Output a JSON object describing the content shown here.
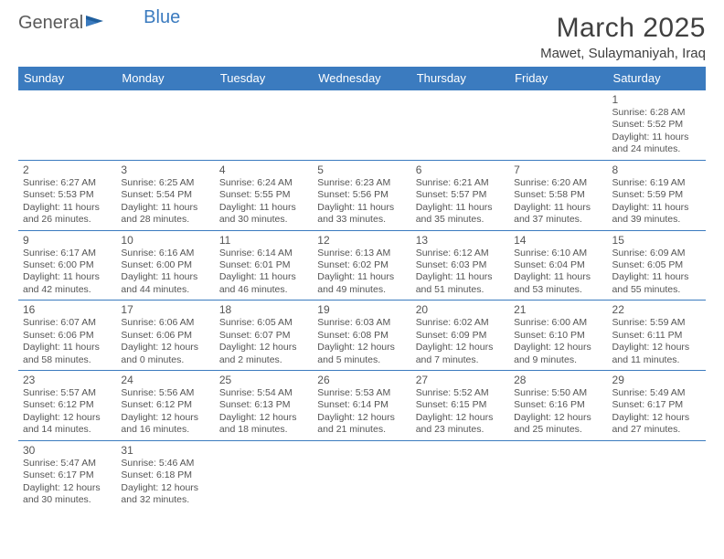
{
  "brand": {
    "part1": "General",
    "part2": "Blue"
  },
  "title": "March 2025",
  "location": "Mawet, Sulaymaniyah, Iraq",
  "colors": {
    "header_bg": "#3b7bbf",
    "header_text": "#ffffff",
    "border": "#3b7bbf",
    "text": "#555555",
    "title": "#404040"
  },
  "weekdays": [
    "Sunday",
    "Monday",
    "Tuesday",
    "Wednesday",
    "Thursday",
    "Friday",
    "Saturday"
  ],
  "weeks": [
    [
      null,
      null,
      null,
      null,
      null,
      null,
      {
        "d": "1",
        "sr": "6:28 AM",
        "ss": "5:52 PM",
        "dl": "11 hours and 24 minutes."
      }
    ],
    [
      {
        "d": "2",
        "sr": "6:27 AM",
        "ss": "5:53 PM",
        "dl": "11 hours and 26 minutes."
      },
      {
        "d": "3",
        "sr": "6:25 AM",
        "ss": "5:54 PM",
        "dl": "11 hours and 28 minutes."
      },
      {
        "d": "4",
        "sr": "6:24 AM",
        "ss": "5:55 PM",
        "dl": "11 hours and 30 minutes."
      },
      {
        "d": "5",
        "sr": "6:23 AM",
        "ss": "5:56 PM",
        "dl": "11 hours and 33 minutes."
      },
      {
        "d": "6",
        "sr": "6:21 AM",
        "ss": "5:57 PM",
        "dl": "11 hours and 35 minutes."
      },
      {
        "d": "7",
        "sr": "6:20 AM",
        "ss": "5:58 PM",
        "dl": "11 hours and 37 minutes."
      },
      {
        "d": "8",
        "sr": "6:19 AM",
        "ss": "5:59 PM",
        "dl": "11 hours and 39 minutes."
      }
    ],
    [
      {
        "d": "9",
        "sr": "6:17 AM",
        "ss": "6:00 PM",
        "dl": "11 hours and 42 minutes."
      },
      {
        "d": "10",
        "sr": "6:16 AM",
        "ss": "6:00 PM",
        "dl": "11 hours and 44 minutes."
      },
      {
        "d": "11",
        "sr": "6:14 AM",
        "ss": "6:01 PM",
        "dl": "11 hours and 46 minutes."
      },
      {
        "d": "12",
        "sr": "6:13 AM",
        "ss": "6:02 PM",
        "dl": "11 hours and 49 minutes."
      },
      {
        "d": "13",
        "sr": "6:12 AM",
        "ss": "6:03 PM",
        "dl": "11 hours and 51 minutes."
      },
      {
        "d": "14",
        "sr": "6:10 AM",
        "ss": "6:04 PM",
        "dl": "11 hours and 53 minutes."
      },
      {
        "d": "15",
        "sr": "6:09 AM",
        "ss": "6:05 PM",
        "dl": "11 hours and 55 minutes."
      }
    ],
    [
      {
        "d": "16",
        "sr": "6:07 AM",
        "ss": "6:06 PM",
        "dl": "11 hours and 58 minutes."
      },
      {
        "d": "17",
        "sr": "6:06 AM",
        "ss": "6:06 PM",
        "dl": "12 hours and 0 minutes."
      },
      {
        "d": "18",
        "sr": "6:05 AM",
        "ss": "6:07 PM",
        "dl": "12 hours and 2 minutes."
      },
      {
        "d": "19",
        "sr": "6:03 AM",
        "ss": "6:08 PM",
        "dl": "12 hours and 5 minutes."
      },
      {
        "d": "20",
        "sr": "6:02 AM",
        "ss": "6:09 PM",
        "dl": "12 hours and 7 minutes."
      },
      {
        "d": "21",
        "sr": "6:00 AM",
        "ss": "6:10 PM",
        "dl": "12 hours and 9 minutes."
      },
      {
        "d": "22",
        "sr": "5:59 AM",
        "ss": "6:11 PM",
        "dl": "12 hours and 11 minutes."
      }
    ],
    [
      {
        "d": "23",
        "sr": "5:57 AM",
        "ss": "6:12 PM",
        "dl": "12 hours and 14 minutes."
      },
      {
        "d": "24",
        "sr": "5:56 AM",
        "ss": "6:12 PM",
        "dl": "12 hours and 16 minutes."
      },
      {
        "d": "25",
        "sr": "5:54 AM",
        "ss": "6:13 PM",
        "dl": "12 hours and 18 minutes."
      },
      {
        "d": "26",
        "sr": "5:53 AM",
        "ss": "6:14 PM",
        "dl": "12 hours and 21 minutes."
      },
      {
        "d": "27",
        "sr": "5:52 AM",
        "ss": "6:15 PM",
        "dl": "12 hours and 23 minutes."
      },
      {
        "d": "28",
        "sr": "5:50 AM",
        "ss": "6:16 PM",
        "dl": "12 hours and 25 minutes."
      },
      {
        "d": "29",
        "sr": "5:49 AM",
        "ss": "6:17 PM",
        "dl": "12 hours and 27 minutes."
      }
    ],
    [
      {
        "d": "30",
        "sr": "5:47 AM",
        "ss": "6:17 PM",
        "dl": "12 hours and 30 minutes."
      },
      {
        "d": "31",
        "sr": "5:46 AM",
        "ss": "6:18 PM",
        "dl": "12 hours and 32 minutes."
      },
      null,
      null,
      null,
      null,
      null
    ]
  ],
  "labels": {
    "sunrise": "Sunrise:",
    "sunset": "Sunset:",
    "daylight": "Daylight:"
  }
}
